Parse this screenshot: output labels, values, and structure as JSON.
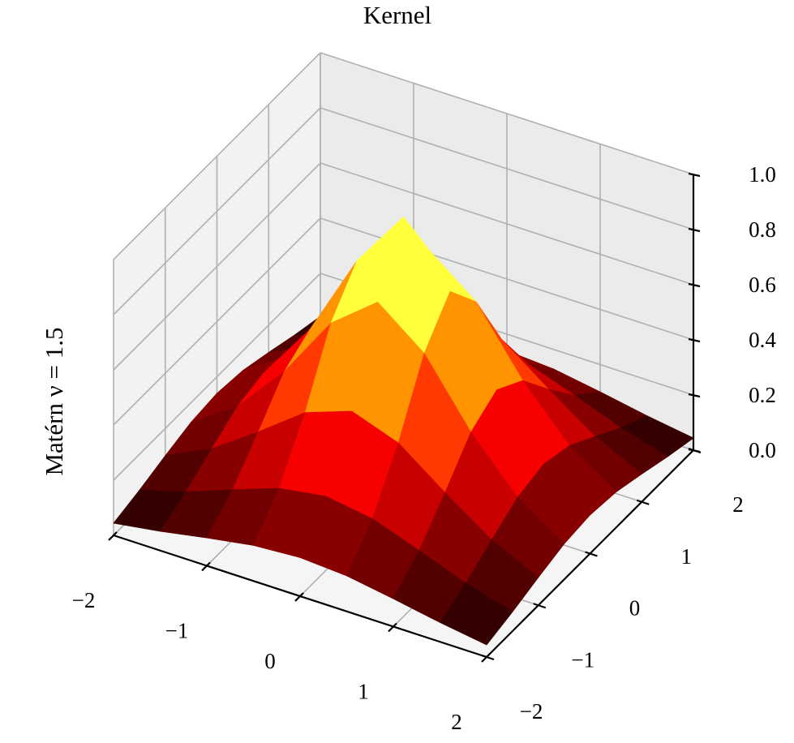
{
  "chart_data": {
    "type": "surface",
    "title": "Kernel",
    "side_label": "Matérn ν = 1.5",
    "colormap": "hot",
    "x": [
      -2,
      -1.5,
      -1,
      -0.5,
      0,
      0.5,
      1,
      1.5,
      2
    ],
    "y": [
      -2,
      -1.5,
      -1,
      -0.5,
      0,
      0.5,
      1,
      1.5,
      2
    ],
    "z": [
      [
        0.044,
        0.07,
        0.101,
        0.129,
        0.14,
        0.129,
        0.101,
        0.07,
        0.044
      ],
      [
        0.07,
        0.119,
        0.182,
        0.242,
        0.268,
        0.242,
        0.182,
        0.119,
        0.07
      ],
      [
        0.101,
        0.182,
        0.298,
        0.423,
        0.483,
        0.423,
        0.298,
        0.182,
        0.101
      ],
      [
        0.129,
        0.242,
        0.423,
        0.654,
        0.785,
        0.654,
        0.423,
        0.242,
        0.129
      ],
      [
        0.14,
        0.268,
        0.483,
        0.785,
        1,
        0.785,
        0.483,
        0.268,
        0.14
      ],
      [
        0.129,
        0.242,
        0.423,
        0.654,
        0.785,
        0.654,
        0.423,
        0.242,
        0.129
      ],
      [
        0.101,
        0.182,
        0.298,
        0.423,
        0.483,
        0.423,
        0.298,
        0.182,
        0.101
      ],
      [
        0.07,
        0.119,
        0.182,
        0.242,
        0.268,
        0.242,
        0.182,
        0.119,
        0.07
      ],
      [
        0.044,
        0.07,
        0.101,
        0.129,
        0.14,
        0.129,
        0.101,
        0.07,
        0.044
      ]
    ],
    "xlim": [
      -2,
      2
    ],
    "ylim": [
      -2,
      2
    ],
    "zlim": [
      0,
      1
    ],
    "xticks": [
      {
        "value": -2,
        "label": "−2"
      },
      {
        "value": -1,
        "label": "−1"
      },
      0,
      1,
      2
    ],
    "yticks": [
      {
        "value": -2,
        "label": "−2"
      },
      {
        "value": -1,
        "label": "−1"
      },
      0,
      1,
      2
    ],
    "zticks": [
      {
        "value": 0,
        "label": "0.0"
      },
      {
        "value": 0.2,
        "label": "0.2"
      },
      {
        "value": 0.4,
        "label": "0.4"
      },
      {
        "value": 0.6,
        "label": "0.6"
      },
      {
        "value": 0.8,
        "label": "0.8"
      },
      {
        "value": 1,
        "label": "1.0"
      }
    ],
    "grid": true
  }
}
